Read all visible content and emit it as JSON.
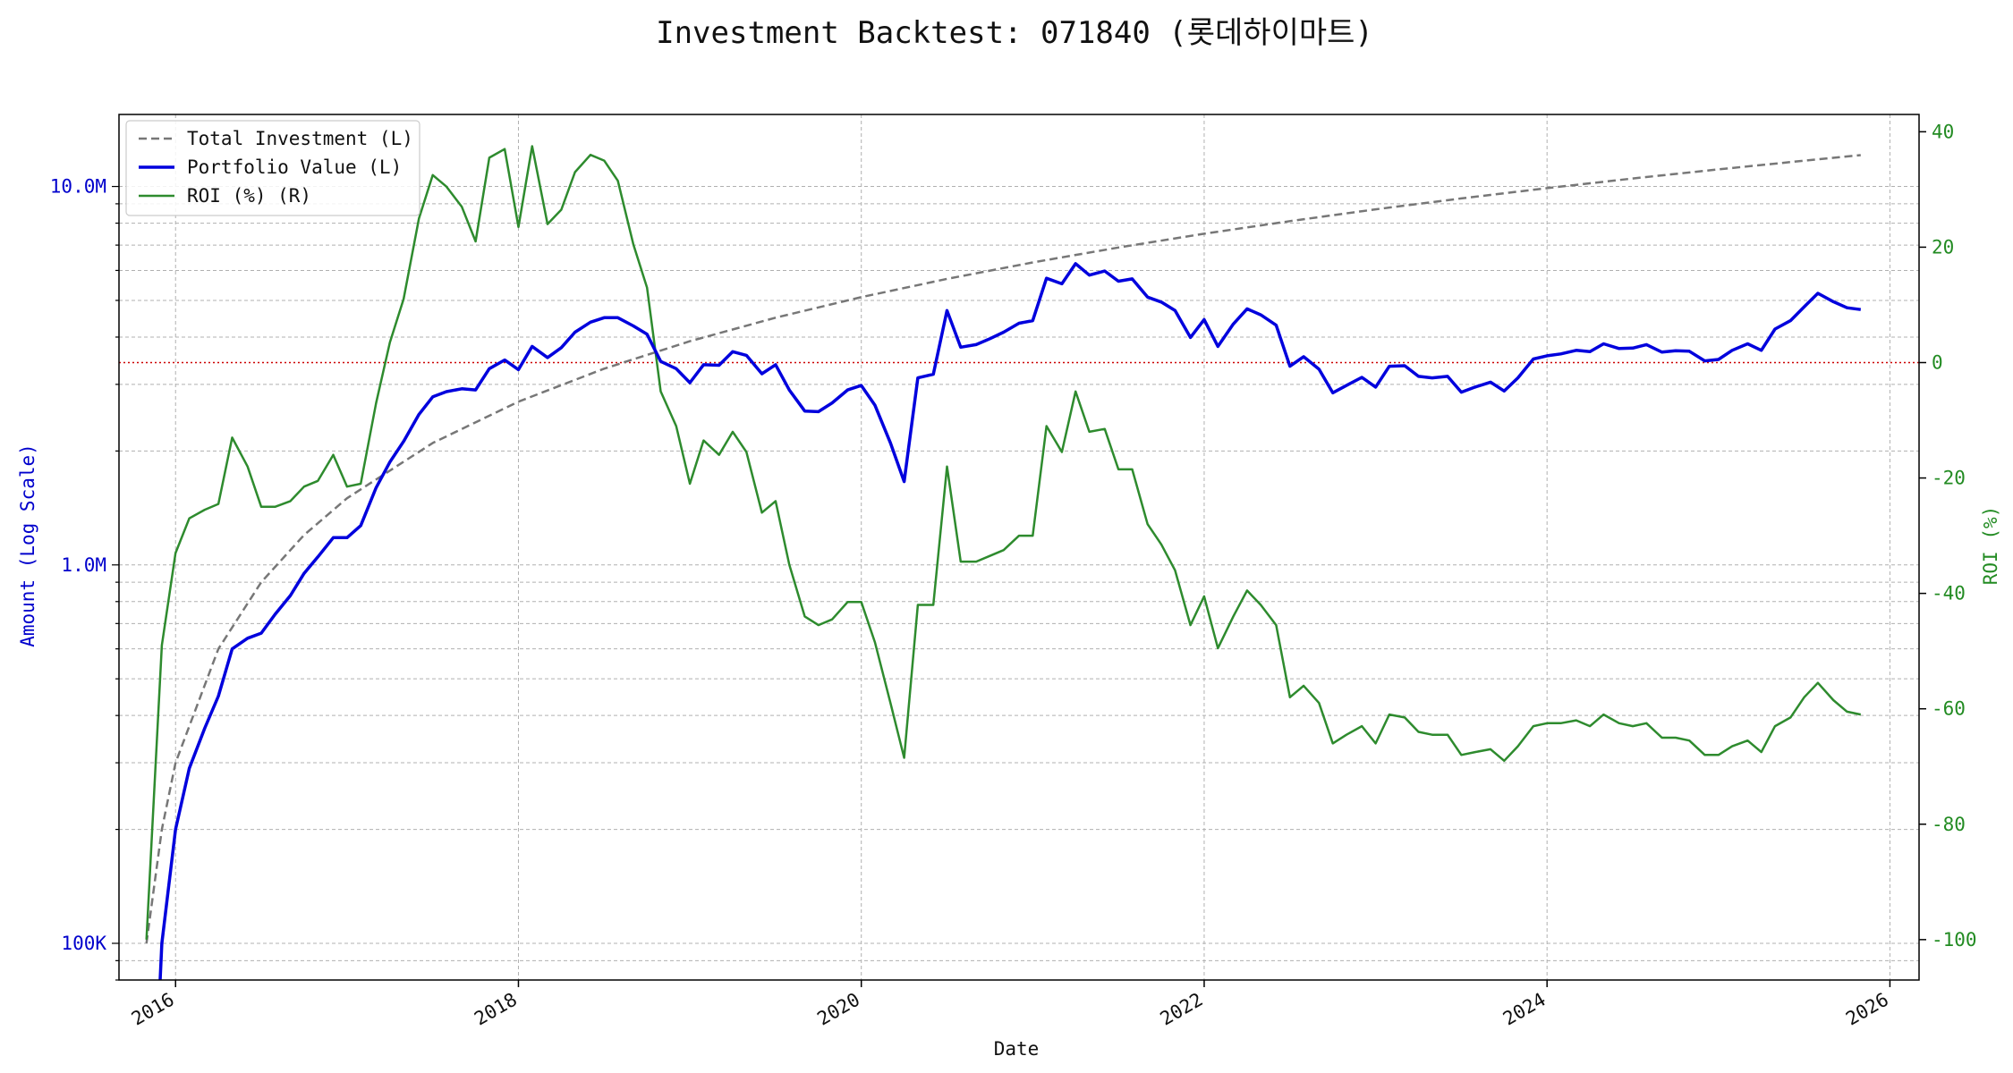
{
  "chart_data": {
    "type": "line",
    "title": "Investment Backtest: 071840 (롯데하이마트)",
    "xlabel": "Date",
    "ylabel_left": "Amount (Log Scale)",
    "ylabel_right": "ROI (%)",
    "left_axis": {
      "scale": "log",
      "range": [
        80000,
        15500000
      ],
      "ticks": [
        {
          "value": 100000,
          "label": "100K"
        },
        {
          "value": 1000000,
          "label": "1.0M"
        },
        {
          "value": 10000000,
          "label": "10.0M"
        }
      ],
      "color": "#0000cc"
    },
    "right_axis": {
      "scale": "linear",
      "range": [
        -107,
        43
      ],
      "ticks": [
        -100,
        -80,
        -60,
        -40,
        -20,
        0,
        20,
        40
      ],
      "color": "#228B22"
    },
    "x_axis": {
      "range": [
        2015.67,
        2026.17
      ],
      "ticks": [
        {
          "value": 2016,
          "label": "2016"
        },
        {
          "value": 2018,
          "label": "2018"
        },
        {
          "value": 2020,
          "label": "2020"
        },
        {
          "value": 2022,
          "label": "2022"
        },
        {
          "value": 2024,
          "label": "2024"
        },
        {
          "value": 2026,
          "label": "2026"
        }
      ]
    },
    "grid": true,
    "legend_position": "top-left",
    "reference_line": {
      "axis": "right",
      "value": 0,
      "color": "#cc0000",
      "style": "dotted"
    },
    "series": [
      {
        "name": "Total Investment (L)",
        "axis": "left",
        "color": "#777777",
        "style": "dashed",
        "x": [
          2015.83,
          2015.92,
          2016.0,
          2016.25,
          2016.5,
          2016.75,
          2017.0,
          2017.5,
          2018.0,
          2018.5,
          2019.0,
          2019.5,
          2020.0,
          2020.5,
          2021.0,
          2021.5,
          2022.0,
          2022.5,
          2023.0,
          2023.5,
          2024.0,
          2024.5,
          2025.0,
          2025.5,
          2025.83
        ],
        "y": [
          100000,
          200000,
          300000,
          600000,
          900000,
          1200000,
          1500000,
          2100000,
          2700000,
          3300000,
          3900000,
          4500000,
          5100000,
          5700000,
          6300000,
          6900000,
          7500000,
          8100000,
          8700000,
          9300000,
          9900000,
          10500000,
          11100000,
          11700000,
          12100000
        ]
      },
      {
        "name": "Portfolio Value (L)",
        "axis": "left",
        "color": "#0000dd",
        "style": "solid",
        "x": [
          2015.91,
          2015.92,
          2016.0,
          2016.08,
          2016.17,
          2016.25,
          2016.33,
          2016.42,
          2016.5,
          2016.58,
          2016.67,
          2016.75,
          2016.83,
          2016.92,
          2017.0,
          2017.08,
          2017.17,
          2017.25,
          2017.33,
          2017.42,
          2017.5,
          2017.58,
          2017.67,
          2017.75,
          2017.83,
          2017.92,
          2018.0,
          2018.08,
          2018.17,
          2018.25,
          2018.33,
          2018.42,
          2018.5,
          2018.58,
          2018.67,
          2018.75,
          2018.83,
          2018.92,
          2019.0,
          2019.08,
          2019.17,
          2019.25,
          2019.33,
          2019.42,
          2019.5,
          2019.58,
          2019.67,
          2019.75,
          2019.83,
          2019.92,
          2020.0,
          2020.08,
          2020.17,
          2020.25,
          2020.33,
          2020.42,
          2020.5,
          2020.58,
          2020.67,
          2020.75,
          2020.83,
          2020.92,
          2021.0,
          2021.08,
          2021.17,
          2021.25,
          2021.33,
          2021.42,
          2021.5,
          2021.58,
          2021.67,
          2021.75,
          2021.83,
          2021.92,
          2022.0,
          2022.08,
          2022.17,
          2022.25,
          2022.33,
          2022.42,
          2022.5,
          2022.58,
          2022.67,
          2022.75,
          2022.83,
          2022.92,
          2023.0,
          2023.08,
          2023.17,
          2023.25,
          2023.33,
          2023.42,
          2023.5,
          2023.58,
          2023.67,
          2023.75,
          2023.83,
          2023.92,
          2024.0,
          2024.08,
          2024.17,
          2024.25,
          2024.33,
          2024.42,
          2024.5,
          2024.58,
          2024.67,
          2024.75,
          2024.83,
          2024.92,
          2025.0,
          2025.08,
          2025.17,
          2025.25,
          2025.33,
          2025.42,
          2025.5,
          2025.58,
          2025.67,
          2025.75,
          2025.83
        ],
        "y": [
          80000,
          100000,
          200000,
          290000,
          370000,
          450000,
          600000,
          640000,
          660000,
          740000,
          830000,
          950000,
          1050000,
          1180000,
          1180000,
          1270000,
          1600000,
          1870000,
          2120000,
          2500000,
          2780000,
          2870000,
          2920000,
          2900000,
          3300000,
          3480000,
          3280000,
          3780000,
          3530000,
          3750000,
          4120000,
          4380000,
          4500000,
          4500000,
          4280000,
          4070000,
          3450000,
          3300000,
          3030000,
          3380000,
          3370000,
          3660000,
          3580000,
          3200000,
          3380000,
          2900000,
          2550000,
          2540000,
          2680000,
          2900000,
          2980000,
          2640000,
          2100000,
          1660000,
          3120000,
          3190000,
          4700000,
          3760000,
          3820000,
          3960000,
          4120000,
          4350000,
          4420000,
          5720000,
          5530000,
          6250000,
          5830000,
          5980000,
          5620000,
          5700000,
          5100000,
          4950000,
          4700000,
          3990000,
          4450000,
          3780000,
          4330000,
          4750000,
          4580000,
          4300000,
          3350000,
          3550000,
          3290000,
          2850000,
          2980000,
          3130000,
          2950000,
          3350000,
          3360000,
          3150000,
          3120000,
          3150000,
          2860000,
          2950000,
          3040000,
          2880000,
          3120000,
          3500000,
          3570000,
          3610000,
          3690000,
          3660000,
          3840000,
          3730000,
          3740000,
          3820000,
          3650000,
          3680000,
          3670000,
          3460000,
          3490000,
          3690000,
          3840000,
          3690000,
          4200000,
          4420000,
          4810000,
          5220000,
          4960000,
          4780000,
          4730000
        ]
      },
      {
        "name": "ROI (%) (R)",
        "axis": "right",
        "color": "#2e8b2e",
        "style": "solid",
        "x": [
          2015.83,
          2015.92,
          2016.0,
          2016.08,
          2016.17,
          2016.25,
          2016.33,
          2016.42,
          2016.5,
          2016.58,
          2016.67,
          2016.75,
          2016.83,
          2016.92,
          2017.0,
          2017.08,
          2017.17,
          2017.25,
          2017.33,
          2017.42,
          2017.5,
          2017.58,
          2017.67,
          2017.75,
          2017.83,
          2017.92,
          2018.0,
          2018.08,
          2018.17,
          2018.25,
          2018.33,
          2018.42,
          2018.5,
          2018.58,
          2018.67,
          2018.75,
          2018.83,
          2018.92,
          2019.0,
          2019.08,
          2019.17,
          2019.25,
          2019.33,
          2019.42,
          2019.5,
          2019.58,
          2019.67,
          2019.75,
          2019.83,
          2019.92,
          2020.0,
          2020.08,
          2020.17,
          2020.25,
          2020.33,
          2020.42,
          2020.5,
          2020.58,
          2020.67,
          2020.75,
          2020.83,
          2020.92,
          2021.0,
          2021.08,
          2021.17,
          2021.25,
          2021.33,
          2021.42,
          2021.5,
          2021.58,
          2021.67,
          2021.75,
          2021.83,
          2021.92,
          2022.0,
          2022.08,
          2022.17,
          2022.25,
          2022.33,
          2022.42,
          2022.5,
          2022.58,
          2022.67,
          2022.75,
          2022.83,
          2022.92,
          2023.0,
          2023.08,
          2023.17,
          2023.25,
          2023.33,
          2023.42,
          2023.5,
          2023.58,
          2023.67,
          2023.75,
          2023.83,
          2023.92,
          2024.0,
          2024.08,
          2024.17,
          2024.25,
          2024.33,
          2024.42,
          2024.5,
          2024.58,
          2024.67,
          2024.75,
          2024.83,
          2024.92,
          2025.0,
          2025.08,
          2025.17,
          2025.25,
          2025.33,
          2025.42,
          2025.5,
          2025.58,
          2025.67,
          2025.75,
          2025.83
        ],
        "y": [
          -100,
          -49,
          -33,
          -27,
          -25.5,
          -24.5,
          -13,
          -18,
          -25,
          -25,
          -24,
          -21.5,
          -20.5,
          -16,
          -21.5,
          -21,
          -7,
          3.5,
          11,
          25,
          32.5,
          30.5,
          27,
          21,
          35.5,
          37,
          23.5,
          37.5,
          24,
          26.5,
          33,
          36,
          35,
          31.5,
          20.5,
          13,
          -5,
          -11,
          -21,
          -13.5,
          -16,
          -12,
          -15.5,
          -26,
          -24,
          -35,
          -44,
          -45.5,
          -44.5,
          -41.5,
          -41.5,
          -48.5,
          -59,
          -68.5,
          -42,
          -42,
          -18,
          -34.5,
          -34.5,
          -33.5,
          -32.5,
          -30,
          -30,
          -11,
          -15.5,
          -5,
          -12,
          -11.5,
          -18.5,
          -18.5,
          -28,
          -31.5,
          -36,
          -45.5,
          -40.5,
          -49.5,
          -44,
          -39.5,
          -42,
          -45.5,
          -58,
          -56,
          -59,
          -66,
          -64.5,
          -63,
          -66,
          -61,
          -61.5,
          -64,
          -64.5,
          -64.5,
          -68,
          -67.5,
          -67,
          -69,
          -66.5,
          -63,
          -62.5,
          -62.5,
          -62,
          -63,
          -61,
          -62.5,
          -63,
          -62.5,
          -65,
          -65,
          -65.5,
          -68,
          -68,
          -66.5,
          -65.5,
          -67.5,
          -63,
          -61.5,
          -58,
          -55.5,
          -58.5,
          -60.5,
          -61
        ]
      }
    ]
  }
}
